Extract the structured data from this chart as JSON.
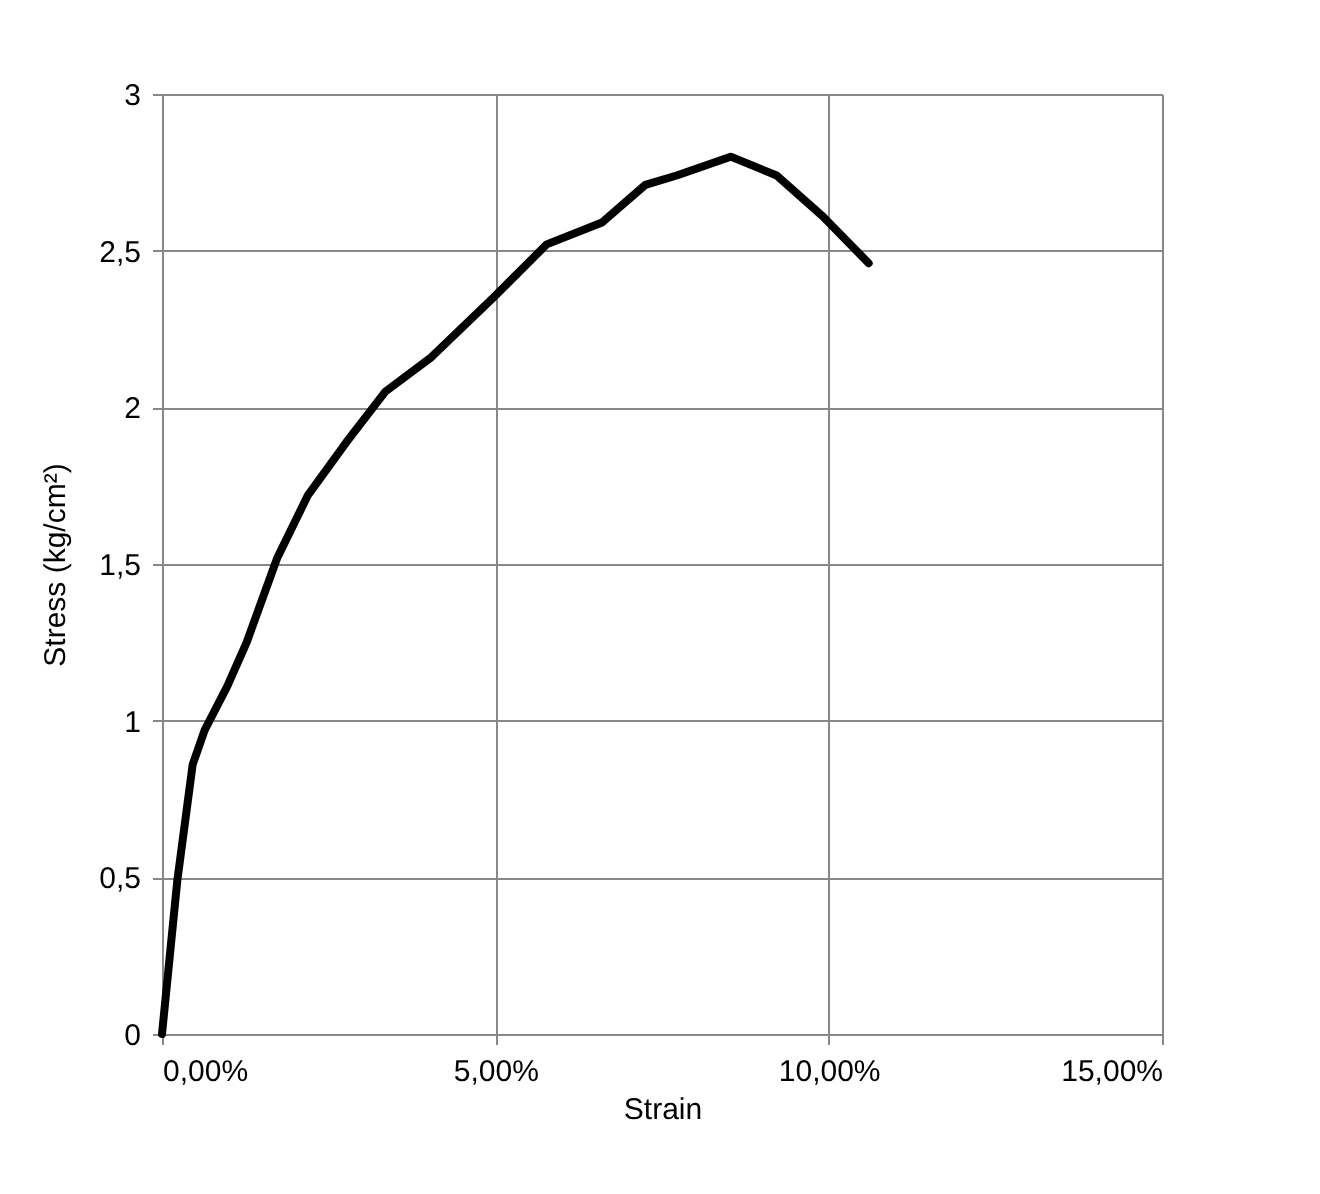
{
  "chart_data": {
    "type": "line",
    "xlabel": "Strain",
    "ylabel": "Stress (kg/cm²)",
    "xlim": [
      0,
      15
    ],
    "ylim": [
      0,
      3
    ],
    "xticks": [
      {
        "value": 0,
        "label": "0,00%"
      },
      {
        "value": 5,
        "label": "5,00%"
      },
      {
        "value": 10,
        "label": "10,00%"
      },
      {
        "value": 15,
        "label": "15,00%"
      }
    ],
    "yticks": [
      0,
      {
        "value": 0.5,
        "label": "0,5"
      },
      1,
      {
        "value": 1.5,
        "label": "1,5"
      },
      2,
      {
        "value": 2.5,
        "label": "2,5"
      },
      3
    ],
    "grid": true,
    "marker": "none",
    "line_style": "solid",
    "series": [
      {
        "color": "#000000",
        "x": [
          0,
          0.23,
          0.46,
          0.64,
          0.98,
          1.27,
          1.73,
          2.19,
          2.77,
          3.35,
          4.04,
          4.97,
          5.77,
          6.6,
          7.25,
          7.72,
          8.53,
          9.22,
          9.91,
          10.6
        ],
        "values": [
          0,
          0.49,
          0.86,
          0.97,
          1.11,
          1.25,
          1.52,
          1.72,
          1.89,
          2.05,
          2.16,
          2.35,
          2.52,
          2.59,
          2.71,
          2.74,
          2.8,
          2.74,
          2.61,
          2.46
        ]
      }
    ]
  }
}
